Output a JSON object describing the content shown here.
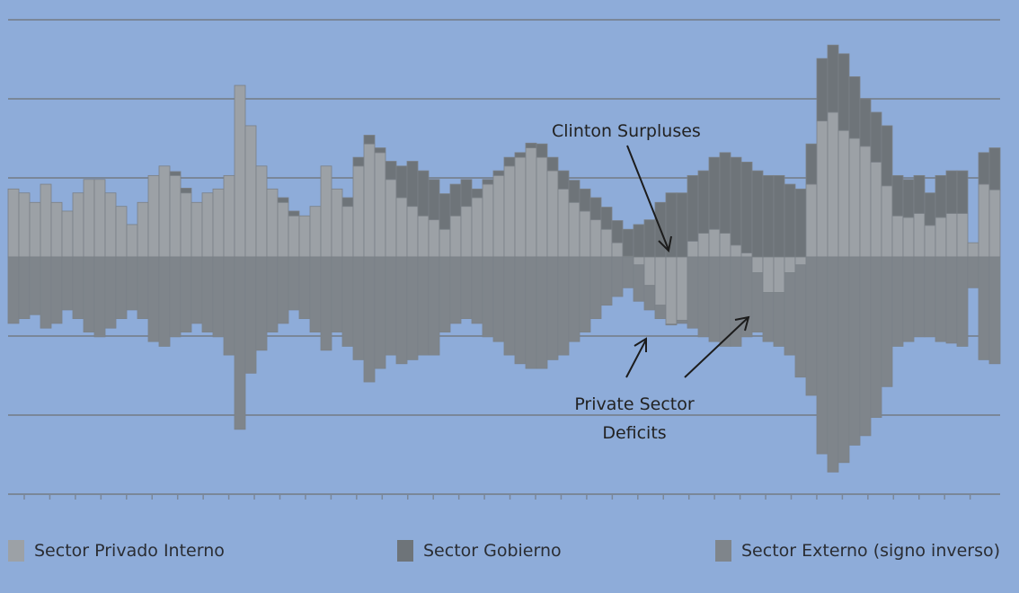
{
  "chart_data": {
    "type": "bar",
    "stacked": true,
    "title": "",
    "xlabel": "",
    "ylabel": "",
    "ylim": [
      -3,
      3
    ],
    "grid": true,
    "y_tick_labels_shown": false,
    "x_tick_labels_shown": false,
    "legend_position": "bottom",
    "series": [
      {
        "name": "Sector Privado Interno",
        "color": "#9ca1a6",
        "values": [
          0.86,
          0.81,
          0.69,
          0.92,
          0.69,
          0.58,
          0.81,
          0.98,
          0.98,
          0.81,
          0.64,
          0.41,
          0.69,
          1.03,
          1.15,
          1.03,
          0.81,
          0.69,
          0.81,
          0.86,
          1.03,
          2.17,
          1.66,
          1.15,
          0.86,
          0.69,
          0.52,
          0.52,
          0.64,
          1.15,
          0.86,
          0.64,
          1.15,
          1.43,
          1.32,
          0.98,
          0.75,
          0.64,
          0.52,
          0.47,
          0.35,
          0.52,
          0.64,
          0.75,
          0.92,
          1.03,
          1.15,
          1.26,
          1.38,
          1.26,
          1.09,
          0.86,
          0.69,
          0.58,
          0.47,
          0.35,
          0.18,
          0.01,
          -0.1,
          -0.36,
          -0.61,
          -0.85,
          -0.8,
          0.2,
          0.3,
          0.35,
          0.3,
          0.15,
          0.05,
          -0.2,
          -0.45,
          -0.45,
          -0.2,
          -0.1,
          0.92,
          1.72,
          1.83,
          1.6,
          1.5,
          1.4,
          1.2,
          0.9,
          0.52,
          0.5,
          0.55,
          0.4,
          0.5,
          0.55,
          0.55,
          0.18,
          0.92,
          0.85
        ]
      },
      {
        "name": "Sector Gobierno",
        "color": "#6e7479",
        "values": [
          0,
          0,
          0,
          0,
          0,
          0,
          0,
          0,
          0,
          0,
          0,
          0,
          0,
          0,
          0,
          0.05,
          0.06,
          0,
          0,
          0,
          0,
          0,
          0,
          0,
          0,
          0.06,
          0.06,
          0,
          0,
          0,
          0,
          0.11,
          0.11,
          0.11,
          0.06,
          0.23,
          0.4,
          0.57,
          0.57,
          0.51,
          0.45,
          0.4,
          0.34,
          0.11,
          0.06,
          0.06,
          0.11,
          0.06,
          0.06,
          0.17,
          0.17,
          0.23,
          0.28,
          0.28,
          0.28,
          0.28,
          0.28,
          0.34,
          0.41,
          0.47,
          0.69,
          0.81,
          0.81,
          0.83,
          0.79,
          0.91,
          1.02,
          1.11,
          1.15,
          1.09,
          1.03,
          1.03,
          0.92,
          0.86,
          0.51,
          0.79,
          0.85,
          0.97,
          0.78,
          0.6,
          0.63,
          0.76,
          0.51,
          0.48,
          0.48,
          0.41,
          0.53,
          0.54,
          0.54,
          0,
          0.4,
          0.53
        ]
      },
      {
        "name": "Sector Externo (signo inverso)",
        "color": "#7f858b",
        "values": [
          -0.84,
          -0.78,
          -0.73,
          -0.9,
          -0.84,
          -0.67,
          -0.78,
          -0.95,
          -1.01,
          -0.9,
          -0.78,
          -0.67,
          -0.78,
          -1.07,
          -1.13,
          -1.01,
          -0.95,
          -0.84,
          -0.95,
          -1.01,
          -1.24,
          -2.18,
          -1.47,
          -1.18,
          -0.95,
          -0.84,
          -0.67,
          -0.78,
          -0.95,
          -1.18,
          -0.95,
          -1.13,
          -1.3,
          -1.58,
          -1.41,
          -1.24,
          -1.35,
          -1.3,
          -1.24,
          -1.24,
          -0.95,
          -0.84,
          -0.78,
          -0.84,
          -1.01,
          -1.07,
          -1.24,
          -1.35,
          -1.41,
          -1.41,
          -1.3,
          -1.24,
          -1.07,
          -0.95,
          -0.78,
          -0.61,
          -0.5,
          -0.39,
          -0.46,
          -0.31,
          -0.17,
          -0.01,
          -0.04,
          -0.9,
          -1.01,
          -1.07,
          -1.13,
          -1.13,
          -1.01,
          -0.75,
          -0.62,
          -0.68,
          -1.04,
          -1.42,
          -1.75,
          -2.49,
          -2.72,
          -2.6,
          -2.38,
          -2.26,
          -2.03,
          -1.64,
          -1.13,
          -1.07,
          -1.01,
          -1.01,
          -1.07,
          -1.09,
          -1.13,
          -0.39,
          -1.3,
          -1.35
        ]
      }
    ],
    "annotations": [
      {
        "text": "Clinton Surpluses"
      },
      {
        "text_lines": [
          "Private Sector",
          "Deficits"
        ]
      }
    ]
  },
  "legend": {
    "items": [
      {
        "label": "Sector Privado Interno",
        "color": "#9ca1a6"
      },
      {
        "label": "Sector Gobierno",
        "color": "#6e7479"
      },
      {
        "label": "Sector Externo (signo inverso)",
        "color": "#7f858b"
      }
    ]
  },
  "colors": {
    "background": "#8eacd9",
    "gridline": "#7a8799",
    "zero_line": "#6c7279"
  }
}
